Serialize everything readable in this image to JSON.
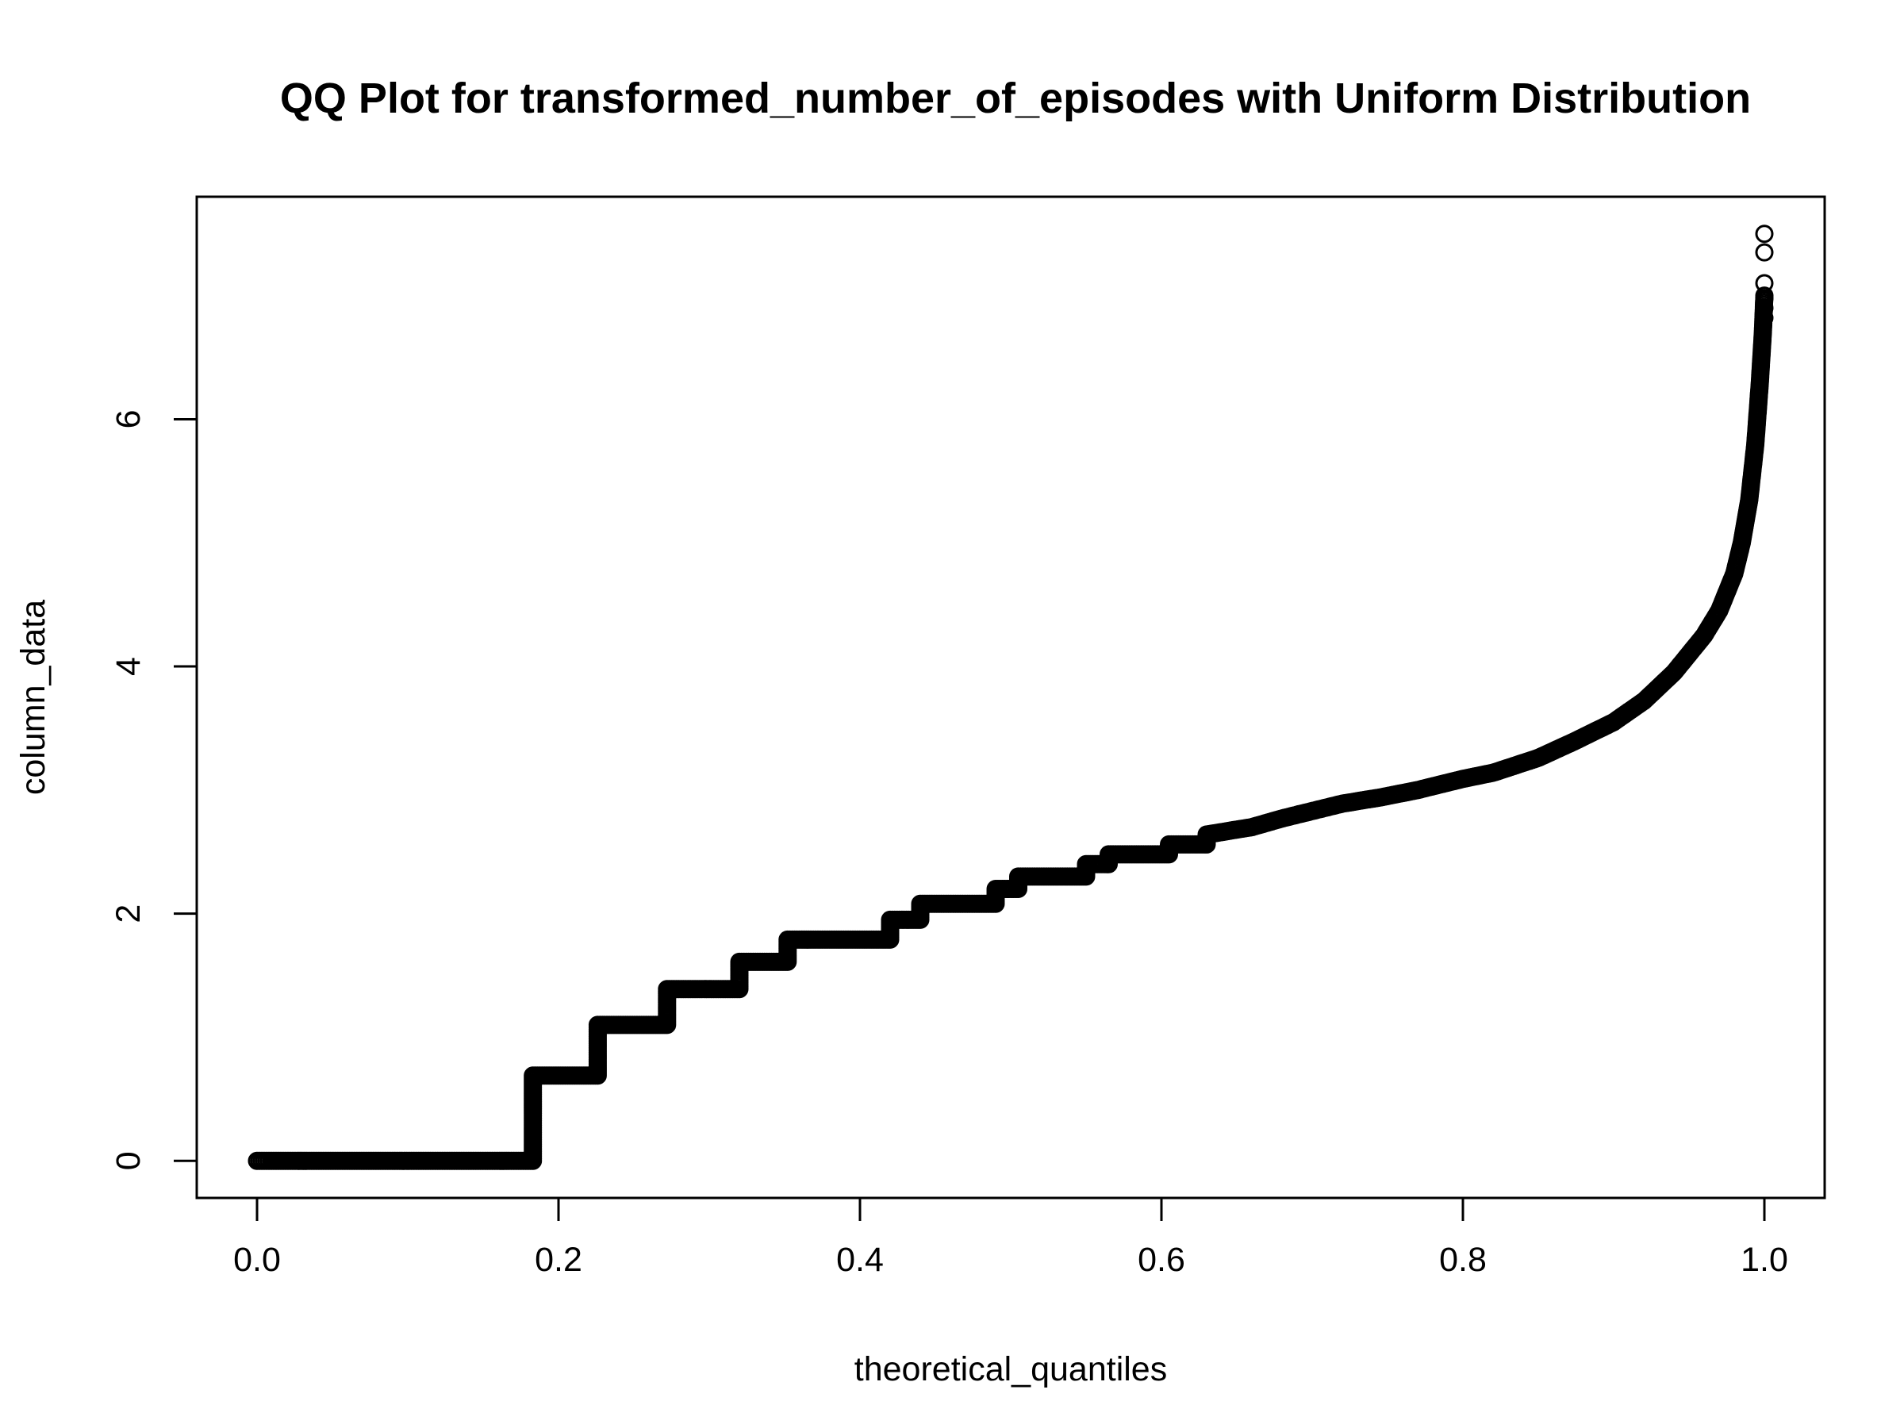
{
  "chart_data": {
    "type": "scatter",
    "title": "QQ Plot for transformed_number_of_episodes with Uniform Distribution",
    "xlabel": "theoretical_quantiles",
    "ylabel": "column_data",
    "xlim": [
      -0.04,
      1.04
    ],
    "ylim": [
      -0.3,
      7.8
    ],
    "x_ticks": [
      0.0,
      0.2,
      0.4,
      0.6,
      0.8,
      1.0
    ],
    "x_tick_labels": [
      "0.0",
      "0.2",
      "0.4",
      "0.6",
      "0.8",
      "1.0"
    ],
    "y_ticks": [
      0,
      2,
      4,
      6
    ],
    "y_tick_labels": [
      "0",
      "2",
      "4",
      "6"
    ],
    "grid": false,
    "marker": "open-circle",
    "color": "#000000",
    "quantile_curve": [
      [
        0.0,
        0.0
      ],
      [
        0.183,
        0.0
      ],
      [
        0.183,
        0.69
      ],
      [
        0.226,
        0.69
      ],
      [
        0.226,
        1.1
      ],
      [
        0.272,
        1.1
      ],
      [
        0.272,
        1.39
      ],
      [
        0.32,
        1.39
      ],
      [
        0.32,
        1.61
      ],
      [
        0.352,
        1.61
      ],
      [
        0.352,
        1.79
      ],
      [
        0.42,
        1.79
      ],
      [
        0.42,
        1.95
      ],
      [
        0.44,
        1.95
      ],
      [
        0.44,
        2.08
      ],
      [
        0.49,
        2.08
      ],
      [
        0.49,
        2.2
      ],
      [
        0.505,
        2.2
      ],
      [
        0.505,
        2.3
      ],
      [
        0.55,
        2.3
      ],
      [
        0.55,
        2.4
      ],
      [
        0.565,
        2.4
      ],
      [
        0.565,
        2.48
      ],
      [
        0.605,
        2.48
      ],
      [
        0.605,
        2.56
      ],
      [
        0.63,
        2.56
      ],
      [
        0.63,
        2.64
      ],
      [
        0.66,
        2.7
      ],
      [
        0.68,
        2.77
      ],
      [
        0.7,
        2.83
      ],
      [
        0.72,
        2.89
      ],
      [
        0.745,
        2.94
      ],
      [
        0.77,
        3.0
      ],
      [
        0.8,
        3.09
      ],
      [
        0.82,
        3.14
      ],
      [
        0.85,
        3.26
      ],
      [
        0.875,
        3.4
      ],
      [
        0.9,
        3.55
      ],
      [
        0.92,
        3.72
      ],
      [
        0.94,
        3.95
      ],
      [
        0.96,
        4.25
      ],
      [
        0.97,
        4.45
      ],
      [
        0.98,
        4.75
      ],
      [
        0.985,
        5.0
      ],
      [
        0.99,
        5.35
      ],
      [
        0.994,
        5.8
      ],
      [
        0.997,
        6.3
      ],
      [
        0.999,
        6.7
      ],
      [
        1.0,
        7.0
      ]
    ],
    "outliers": [
      [
        1.0,
        7.5
      ],
      [
        1.0,
        7.35
      ],
      [
        1.0,
        7.1
      ],
      [
        1.0,
        6.98
      ],
      [
        1.0,
        6.9
      ],
      [
        1.0,
        6.82
      ]
    ]
  }
}
